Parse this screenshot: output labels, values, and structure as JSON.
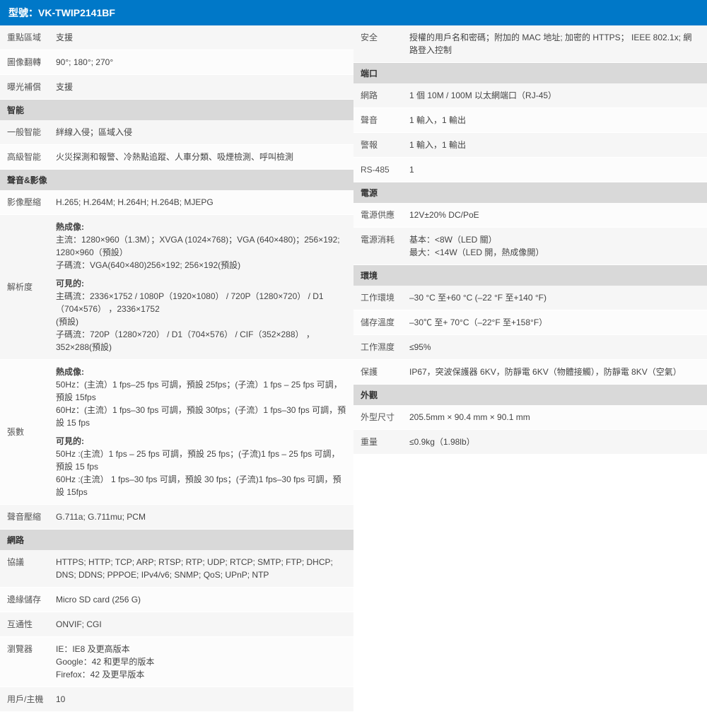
{
  "header": "型號：VK-TWIP2141BF",
  "colors": {
    "accent": "#0078c8",
    "section_bg": "#d9d9d9",
    "row_bg1": "#f6f6f6",
    "row_bg2": "#fcfcfc"
  },
  "left": [
    {
      "type": "row",
      "label": "重點區域",
      "value": "支援"
    },
    {
      "type": "row",
      "label": "圖像翻轉",
      "value": "90°; 180°; 270°"
    },
    {
      "type": "row",
      "label": "曝光補償",
      "value": "支援"
    },
    {
      "type": "section",
      "title": "智能"
    },
    {
      "type": "row",
      "label": "一般智能",
      "value": "絆線入侵；區域入侵"
    },
    {
      "type": "row",
      "label": "高級智能",
      "value": "火災探測和報警、冷熱點追蹤、人車分類、吸煙檢測、呼叫檢測"
    },
    {
      "type": "section",
      "title": "聲音&影像"
    },
    {
      "type": "row",
      "label": "影像壓縮",
      "value": "H.265; H.264M; H.264H; H.264B; MJEPG"
    },
    {
      "type": "row-multi",
      "label": "解析度",
      "groups": [
        {
          "title": "熱成像:",
          "text": "主流：1280×960（1.3M）；XVGA (1024×768)；VGA (640×480)；256×192; 1280×960（預設）\n子碼流：VGA(640×480)256×192; 256×192(預設)"
        },
        {
          "title": "可見的:",
          "text": "主碼流：2336×1752 / 1080P（1920×1080） / 720P（1280×720） / D1（704×576）  ，2336×1752\n(預設)\n子碼流：720P（1280×720） / D1（704×576） / CIF（352×288） ，352×288(預設)"
        }
      ]
    },
    {
      "type": "row-multi",
      "label": "張數",
      "groups": [
        {
          "title": "熱成像:",
          "text": "50Hz：(主流）1 fps–25 fps 可調，預設 25fps；(子流）1 fps – 25 fps 可調，預設 15fps\n60Hz：(主流）1 fps–30 fps 可調，預設 30fps；(子流）1 fps–30 fps 可調，預設 15 fps"
        },
        {
          "title": "可見的:",
          "text": "50Hz :(主流）1 fps – 25 fps 可調，預設 25 fps；(子流)1 fps – 25 fps 可調，預設 15 fps\n60Hz :(主流） 1 fps–30 fps 可調，預設 30 fps；(子流)1 fps–30 fps 可調，預設 15fps"
        }
      ]
    },
    {
      "type": "row",
      "label": "聲音壓縮",
      "value": "G.711a; G.711mu; PCM"
    },
    {
      "type": "section",
      "title": "網路"
    },
    {
      "type": "row",
      "label": "協議",
      "value": "HTTPS; HTTP; TCP; ARP; RTSP; RTP; UDP; RTCP; SMTP; FTP; DHCP; DNS; DDNS; PPPOE; IPv4/v6; SNMP; QoS; UPnP; NTP"
    },
    {
      "type": "row",
      "label": "邊緣儲存",
      "value": "Micro SD card (256 G)"
    },
    {
      "type": "row",
      "label": "互通性",
      "value": "ONVIF; CGI"
    },
    {
      "type": "row",
      "label": "瀏覽器",
      "value": "IE：IE8 及更高版本\nGoogle：42 和更早的版本\nFirefox：42 及更早版本"
    },
    {
      "type": "row",
      "label": "用戶/主機",
      "value": "10"
    }
  ],
  "right": [
    {
      "type": "row",
      "label": "安全",
      "value": "授權的用戶名和密碼；附加的 MAC 地址;  加密的 HTTPS； IEEE 802.1x;  網路登入控制"
    },
    {
      "type": "section",
      "title": "端口"
    },
    {
      "type": "row",
      "label": "網路",
      "value": "1 個 10M / 100M 以太網端口（RJ-45）"
    },
    {
      "type": "row",
      "label": "聲音",
      "value": "1 輸入，1 輸出"
    },
    {
      "type": "row",
      "label": "警報",
      "value": "1 輸入，1 輸出"
    },
    {
      "type": "row",
      "label": "RS-485",
      "value": "1"
    },
    {
      "type": "section",
      "title": "電源"
    },
    {
      "type": "row",
      "label": "電源供應",
      "value": "12V±20% DC/PoE"
    },
    {
      "type": "row",
      "label": "電源消耗",
      "value": "基本：&lt;8W（LED 關）\n最大：&lt;14W（LED 開，熱成像開）"
    },
    {
      "type": "section",
      "title": "環境"
    },
    {
      "type": "row",
      "label": "工作環境",
      "value": "–30 °C  至+60 °C (–22 °F 至+140 °F)"
    },
    {
      "type": "row",
      "label": "儲存溫度",
      "value": "–30℃ 至+ 70°C（–22°F 至+158°F）"
    },
    {
      "type": "row",
      "label": "工作濕度",
      "value": "≤95%"
    },
    {
      "type": "row",
      "label": "保護",
      "value": "IP67，突波保護器 6KV，防靜電 6KV（物體接觸），防靜電 8KV（空氣）"
    },
    {
      "type": "section",
      "title": "外觀"
    },
    {
      "type": "row",
      "label": "外型尺寸",
      "value": "205.5mm × 90.4 mm × 90.1 mm"
    },
    {
      "type": "row",
      "label": "重量",
      "value": "≤0.9kg（1.98lb）"
    }
  ]
}
